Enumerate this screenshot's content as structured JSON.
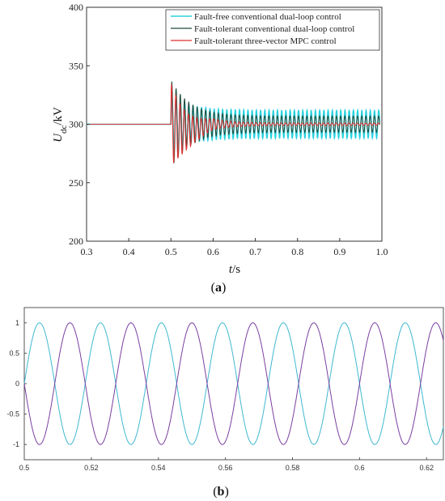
{
  "chart_data": [
    {
      "id": "a",
      "type": "line",
      "panel_label": {
        "open": "(",
        "letter": "a",
        "close": ")"
      },
      "xlabel": {
        "var": "t",
        "unit": "/s"
      },
      "ylabel": {
        "var": "U",
        "sub": "dc",
        "unit": "/kV"
      },
      "xlim": [
        0.3,
        1.0
      ],
      "ylim": [
        200,
        400
      ],
      "xticks": [
        0.3,
        0.4,
        0.5,
        0.6,
        0.7,
        0.8,
        0.9,
        1.0
      ],
      "xtick_labels": [
        "0.3",
        "0.4",
        "0.5",
        "0.6",
        "0.7",
        "0.8",
        "0.9",
        "1.0"
      ],
      "yticks": [
        200,
        250,
        300,
        350,
        400
      ],
      "ytick_labels": [
        "200",
        "250",
        "300",
        "350",
        "400"
      ],
      "grid": false,
      "legend_position": "top-right",
      "fault_time": 0.5,
      "series": [
        {
          "name": "Fault-free conventional dual-loop control",
          "color": "#00c8d8",
          "pre_fault": 300,
          "steady_mean": 300,
          "steady_amplitude": 12,
          "peak": 325,
          "trough": 280
        },
        {
          "name": "Fault-tolerant conventional dual-loop control",
          "color": "#1e4a3a",
          "pre_fault": 300,
          "steady_mean": 300,
          "steady_amplitude": 7,
          "peak": 338,
          "trough": 287
        },
        {
          "name": "Fault-tolerant three-vector MPC control",
          "color": "#e03030",
          "pre_fault": 300,
          "steady_mean": 300,
          "steady_amplitude": 1,
          "peak": 336,
          "trough": 275
        }
      ]
    },
    {
      "id": "b",
      "type": "line",
      "panel_label": {
        "open": "(",
        "letter": "b",
        "close": ")"
      },
      "xlim": [
        0.5,
        0.625
      ],
      "ylim": [
        -1.25,
        1.25
      ],
      "xticks": [
        0.5,
        0.52,
        0.54,
        0.56,
        0.58,
        0.6,
        0.62
      ],
      "xtick_labels": [
        "0.5",
        "0.52",
        "0.54",
        "0.56",
        "0.58",
        "0.6",
        "0.62"
      ],
      "yticks": [
        -1,
        -0.5,
        0,
        0.5,
        1
      ],
      "ytick_labels": [
        "-1",
        "-0.5",
        "0",
        "0.5",
        "1"
      ],
      "grid": false,
      "frequency_hz": 55,
      "series": [
        {
          "color": "#3fb8d0",
          "amplitude": 1,
          "phase_deg": 0
        },
        {
          "color": "#7a3fa0",
          "amplitude": 1,
          "phase_deg": 180
        }
      ]
    }
  ]
}
